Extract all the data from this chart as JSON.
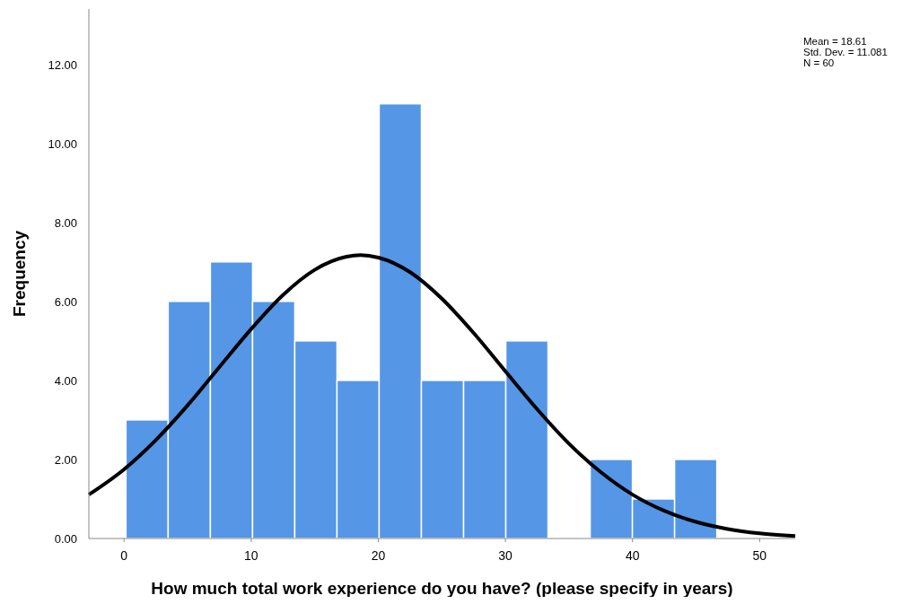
{
  "chart_data": {
    "type": "histogram",
    "xlabel": "How much total work experience do you have? (please specify in years)",
    "ylabel": "Frequency",
    "bins": [
      0.15,
      3.47,
      6.79,
      10.11,
      13.43,
      16.75,
      20.07,
      23.39,
      26.71,
      30.03,
      33.35,
      36.67,
      39.99,
      43.31,
      46.63
    ],
    "values": [
      3,
      6,
      7,
      6,
      5,
      4,
      11,
      4,
      4,
      5,
      0,
      2,
      1,
      2
    ],
    "color": "#5596e6",
    "series": [
      {
        "type": "line",
        "color": "#000000",
        "x": [
          -2.77,
          0,
          2.5,
          5,
          7.5,
          10,
          12.5,
          15,
          17.5,
          18.61,
          20,
          22.5,
          25,
          27.5,
          30,
          32.5,
          35,
          37.5,
          40,
          42.5,
          45,
          47.5,
          50,
          52.8
        ],
        "values": [
          1.11,
          1.75,
          2.49,
          3.37,
          4.34,
          5.3,
          6.16,
          6.8,
          7.13,
          7.17,
          7.11,
          6.74,
          6.07,
          5.2,
          4.23,
          3.27,
          2.4,
          1.68,
          1.11,
          0.7,
          0.42,
          0.24,
          0.13,
          0.06
        ]
      }
    ],
    "xlim": [
      -2.77,
      52.8
    ],
    "ylim": [
      0,
      13.4
    ],
    "xticks": [
      0,
      10,
      20,
      30,
      40,
      50
    ],
    "yticks": [
      {
        "value": 0,
        "label": "0.00"
      },
      {
        "value": 2,
        "label": "2.00"
      },
      {
        "value": 4,
        "label": "4.00"
      },
      {
        "value": 6,
        "label": "6.00"
      },
      {
        "value": 8,
        "label": "8.00"
      },
      {
        "value": 10,
        "label": "10.00"
      },
      {
        "value": 12,
        "label": "12.00"
      }
    ],
    "annotations": [
      "Mean = 18.61",
      "Std. Dev. = 11.081",
      "N = 60"
    ],
    "grid": false
  }
}
